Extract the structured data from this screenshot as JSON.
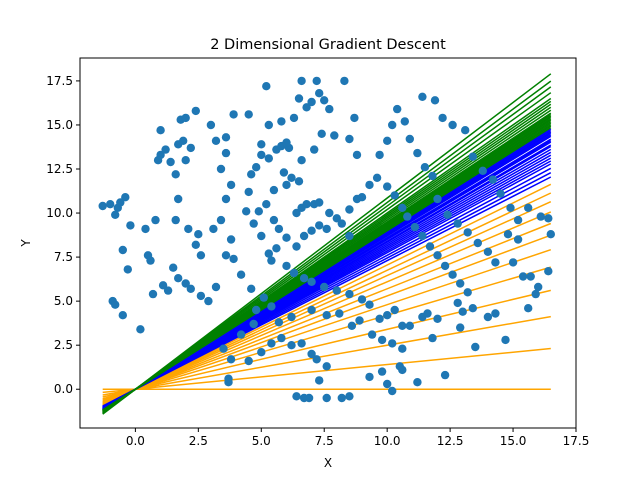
{
  "chart_data": {
    "type": "scatter",
    "title": "2 Dimensional Gradient Descent",
    "xlabel": "X",
    "ylabel": "Y",
    "xlim": [
      -2.2,
      17.5
    ],
    "ylim": [
      -2.2,
      18.8
    ],
    "xticks": [
      0.0,
      2.5,
      5.0,
      7.5,
      10.0,
      12.5,
      15.0,
      17.5
    ],
    "yticks": [
      0.0,
      2.5,
      5.0,
      7.5,
      10.0,
      12.5,
      15.0,
      17.5
    ],
    "xtick_labels": [
      "0.0",
      "2.5",
      "5.0",
      "7.5",
      "10.0",
      "12.5",
      "15.0",
      "17.5"
    ],
    "ytick_labels": [
      "0.0",
      "2.5",
      "5.0",
      "7.5",
      "10.0",
      "12.5",
      "15.0",
      "17.5"
    ],
    "grid": false,
    "colors": {
      "points": "#1f77b4",
      "early_fits": "#ffa500",
      "middle_fits": "#0000ff",
      "late_fits": "#008000"
    },
    "fit_lines": {
      "x_range": [
        -1.3,
        16.5
      ],
      "groups": [
        {
          "color": "orange",
          "slopes": [
            0.0,
            0.14,
            0.25,
            0.34,
            0.42,
            0.48,
            0.53,
            0.57,
            0.61,
            0.645,
            0.675,
            0.705
          ]
        },
        {
          "color": "blue",
          "slopes": [
            0.73,
            0.745,
            0.76,
            0.775,
            0.785,
            0.795,
            0.805,
            0.815,
            0.825,
            0.835,
            0.84,
            0.85,
            0.855,
            0.86,
            0.87,
            0.875,
            0.88,
            0.885,
            0.89,
            0.895
          ]
        },
        {
          "color": "green",
          "slopes": [
            0.9,
            0.905,
            0.91,
            0.915,
            0.92,
            0.925,
            0.93,
            0.935,
            0.94,
            0.945,
            0.95,
            0.96,
            0.97,
            0.98,
            0.99,
            1.0,
            1.02,
            1.04,
            1.06,
            1.085
          ]
        }
      ]
    },
    "points": [
      [
        -1.3,
        10.4
      ],
      [
        -1.0,
        10.5
      ],
      [
        -0.8,
        9.9
      ],
      [
        -0.7,
        10.3
      ],
      [
        -0.6,
        10.6
      ],
      [
        -0.4,
        10.9
      ],
      [
        -0.2,
        9.3
      ],
      [
        -0.9,
        5.0
      ],
      [
        -0.8,
        4.8
      ],
      [
        -0.5,
        4.2
      ],
      [
        -0.3,
        6.8
      ],
      [
        -0.5,
        7.9
      ],
      [
        0.2,
        3.4
      ],
      [
        0.5,
        7.6
      ],
      [
        0.6,
        7.3
      ],
      [
        0.4,
        9.1
      ],
      [
        0.8,
        9.6
      ],
      [
        0.9,
        13.0
      ],
      [
        1.0,
        13.3
      ],
      [
        1.0,
        14.7
      ],
      [
        1.2,
        13.6
      ],
      [
        1.4,
        12.9
      ],
      [
        1.6,
        12.2
      ],
      [
        1.7,
        13.9
      ],
      [
        1.8,
        15.3
      ],
      [
        2.0,
        15.4
      ],
      [
        2.4,
        15.8
      ],
      [
        1.9,
        14.1
      ],
      [
        2.2,
        13.7
      ],
      [
        2.0,
        13.0
      ],
      [
        0.7,
        5.4
      ],
      [
        1.1,
        5.9
      ],
      [
        1.3,
        5.6
      ],
      [
        1.5,
        6.9
      ],
      [
        1.7,
        6.3
      ],
      [
        2.0,
        6.0
      ],
      [
        2.2,
        5.7
      ],
      [
        2.6,
        5.3
      ],
      [
        2.9,
        5.0
      ],
      [
        3.2,
        5.8
      ],
      [
        3.6,
        7.6
      ],
      [
        1.7,
        10.8
      ],
      [
        1.6,
        9.6
      ],
      [
        2.1,
        9.1
      ],
      [
        2.4,
        8.2
      ],
      [
        2.6,
        7.6
      ],
      [
        2.5,
        8.8
      ],
      [
        3.1,
        9.1
      ],
      [
        3.4,
        9.6
      ],
      [
        3.6,
        10.8
      ],
      [
        3.8,
        11.6
      ],
      [
        3.4,
        12.5
      ],
      [
        3.6,
        13.4
      ],
      [
        3.2,
        14.1
      ],
      [
        3.6,
        14.3
      ],
      [
        3.0,
        15.0
      ],
      [
        3.9,
        15.6
      ],
      [
        4.5,
        15.6
      ],
      [
        3.8,
        8.5
      ],
      [
        3.9,
        7.4
      ],
      [
        4.2,
        6.5
      ],
      [
        4.6,
        5.7
      ],
      [
        5.1,
        5.2
      ],
      [
        5.4,
        4.7
      ],
      [
        4.8,
        4.5
      ],
      [
        5.0,
        8.7
      ],
      [
        4.7,
        9.4
      ],
      [
        4.9,
        10.1
      ],
      [
        5.2,
        10.5
      ],
      [
        5.5,
        11.3
      ],
      [
        6.0,
        11.6
      ],
      [
        6.5,
        11.8
      ],
      [
        4.4,
        10.1
      ],
      [
        4.5,
        11.2
      ],
      [
        4.6,
        12.2
      ],
      [
        4.8,
        12.6
      ],
      [
        5.0,
        13.3
      ],
      [
        5.3,
        13.1
      ],
      [
        5.6,
        13.6
      ],
      [
        5.9,
        12.3
      ],
      [
        6.2,
        12.0
      ],
      [
        6.6,
        13.0
      ],
      [
        7.1,
        13.6
      ],
      [
        7.4,
        14.5
      ],
      [
        7.9,
        14.4
      ],
      [
        8.5,
        14.2
      ],
      [
        8.8,
        13.3
      ],
      [
        5.0,
        13.9
      ],
      [
        5.3,
        15.0
      ],
      [
        5.2,
        17.2
      ],
      [
        5.8,
        15.2
      ],
      [
        6.3,
        15.4
      ],
      [
        6.6,
        17.5
      ],
      [
        6.5,
        16.5
      ],
      [
        6.8,
        16.0
      ],
      [
        7.0,
        16.3
      ],
      [
        7.2,
        17.5
      ],
      [
        7.3,
        16.8
      ],
      [
        7.5,
        16.4
      ],
      [
        7.7,
        15.9
      ],
      [
        8.3,
        17.5
      ],
      [
        8.7,
        15.4
      ],
      [
        5.8,
        13.8
      ],
      [
        6.1,
        13.7
      ],
      [
        6.0,
        14.0
      ],
      [
        6.4,
        10.0
      ],
      [
        6.6,
        10.3
      ],
      [
        6.8,
        10.5
      ],
      [
        7.1,
        10.5
      ],
      [
        7.3,
        10.6
      ],
      [
        7.7,
        10.0
      ],
      [
        8.0,
        9.7
      ],
      [
        8.5,
        10.2
      ],
      [
        8.8,
        10.8
      ],
      [
        5.5,
        9.6
      ],
      [
        5.7,
        9.1
      ],
      [
        6.0,
        8.6
      ],
      [
        6.4,
        8.1
      ],
      [
        6.7,
        8.7
      ],
      [
        7.0,
        9.0
      ],
      [
        7.3,
        9.3
      ],
      [
        7.6,
        9.1
      ],
      [
        8.2,
        9.4
      ],
      [
        8.5,
        8.7
      ],
      [
        5.3,
        7.7
      ],
      [
        5.4,
        7.3
      ],
      [
        5.6,
        8.0
      ],
      [
        6.0,
        7.0
      ],
      [
        6.3,
        6.6
      ],
      [
        6.7,
        6.3
      ],
      [
        7.0,
        6.1
      ],
      [
        7.5,
        5.8
      ],
      [
        8.0,
        5.6
      ],
      [
        8.5,
        5.4
      ],
      [
        9.0,
        5.1
      ],
      [
        9.3,
        4.8
      ],
      [
        9.0,
        10.9
      ],
      [
        9.3,
        11.6
      ],
      [
        9.6,
        12.0
      ],
      [
        9.7,
        13.3
      ],
      [
        10.0,
        14.1
      ],
      [
        10.2,
        15.0
      ],
      [
        10.4,
        15.9
      ],
      [
        10.7,
        15.2
      ],
      [
        10.9,
        14.2
      ],
      [
        11.2,
        13.4
      ],
      [
        11.5,
        12.6
      ],
      [
        11.8,
        12.1
      ],
      [
        10.0,
        11.5
      ],
      [
        10.3,
        11.0
      ],
      [
        10.6,
        10.3
      ],
      [
        10.8,
        9.8
      ],
      [
        11.1,
        9.2
      ],
      [
        11.4,
        8.7
      ],
      [
        11.7,
        8.1
      ],
      [
        12.0,
        7.6
      ],
      [
        12.3,
        7.0
      ],
      [
        12.6,
        6.5
      ],
      [
        12.9,
        6.0
      ],
      [
        13.2,
        5.5
      ],
      [
        11.4,
        16.6
      ],
      [
        11.9,
        16.4
      ],
      [
        12.2,
        15.4
      ],
      [
        12.6,
        15.0
      ],
      [
        13.1,
        14.7
      ],
      [
        13.4,
        13.2
      ],
      [
        13.8,
        12.4
      ],
      [
        14.2,
        11.9
      ],
      [
        14.5,
        11.1
      ],
      [
        14.9,
        10.3
      ],
      [
        15.2,
        9.6
      ],
      [
        15.6,
        10.3
      ],
      [
        16.1,
        9.8
      ],
      [
        16.4,
        9.7
      ],
      [
        16.5,
        8.8
      ],
      [
        12.0,
        10.8
      ],
      [
        12.4,
        9.9
      ],
      [
        12.8,
        9.4
      ],
      [
        13.2,
        8.9
      ],
      [
        13.6,
        8.3
      ],
      [
        14.0,
        7.8
      ],
      [
        14.3,
        7.2
      ],
      [
        14.8,
        8.8
      ],
      [
        15.2,
        8.5
      ],
      [
        15.0,
        7.2
      ],
      [
        15.7,
        6.4
      ],
      [
        16.4,
        6.7
      ],
      [
        12.8,
        4.9
      ],
      [
        13.0,
        4.4
      ],
      [
        13.4,
        4.6
      ],
      [
        14.0,
        4.1
      ],
      [
        14.3,
        4.3
      ],
      [
        14.7,
        2.8
      ],
      [
        15.4,
        6.4
      ],
      [
        15.6,
        4.6
      ],
      [
        15.9,
        5.4
      ],
      [
        16.0,
        5.8
      ],
      [
        9.7,
        4.0
      ],
      [
        10.0,
        4.2
      ],
      [
        10.3,
        4.5
      ],
      [
        10.6,
        3.6
      ],
      [
        10.9,
        3.6
      ],
      [
        11.4,
        4.1
      ],
      [
        11.6,
        4.3
      ],
      [
        11.8,
        2.9
      ],
      [
        12.0,
        4.0
      ],
      [
        3.7,
        0.4
      ],
      [
        3.7,
        0.6
      ],
      [
        4.5,
        1.6
      ],
      [
        5.0,
        2.1
      ],
      [
        5.4,
        2.6
      ],
      [
        5.8,
        2.9
      ],
      [
        6.2,
        2.5
      ],
      [
        6.6,
        2.6
      ],
      [
        7.0,
        2.0
      ],
      [
        7.2,
        1.7
      ],
      [
        7.6,
        1.3
      ],
      [
        6.4,
        -0.4
      ],
      [
        6.7,
        -0.5
      ],
      [
        6.9,
        -0.5
      ],
      [
        7.6,
        -0.5
      ],
      [
        8.2,
        -0.5
      ],
      [
        8.5,
        -0.4
      ],
      [
        7.3,
        0.5
      ],
      [
        9.3,
        0.7
      ],
      [
        9.8,
        1.0
      ],
      [
        10.0,
        0.3
      ],
      [
        10.2,
        -0.1
      ],
      [
        10.5,
        1.3
      ],
      [
        10.6,
        1.1
      ],
      [
        11.2,
        0.4
      ],
      [
        12.3,
        0.8
      ],
      [
        3.5,
        2.3
      ],
      [
        3.8,
        1.7
      ],
      [
        4.2,
        3.1
      ],
      [
        4.7,
        3.7
      ],
      [
        5.7,
        3.8
      ],
      [
        6.2,
        4.1
      ],
      [
        7.0,
        4.5
      ],
      [
        7.6,
        4.2
      ],
      [
        8.1,
        4.3
      ],
      [
        8.6,
        3.6
      ],
      [
        8.9,
        3.9
      ],
      [
        9.4,
        3.1
      ],
      [
        9.8,
        2.8
      ],
      [
        10.2,
        2.6
      ],
      [
        10.6,
        2.3
      ],
      [
        12.9,
        3.5
      ],
      [
        13.5,
        2.4
      ]
    ]
  }
}
